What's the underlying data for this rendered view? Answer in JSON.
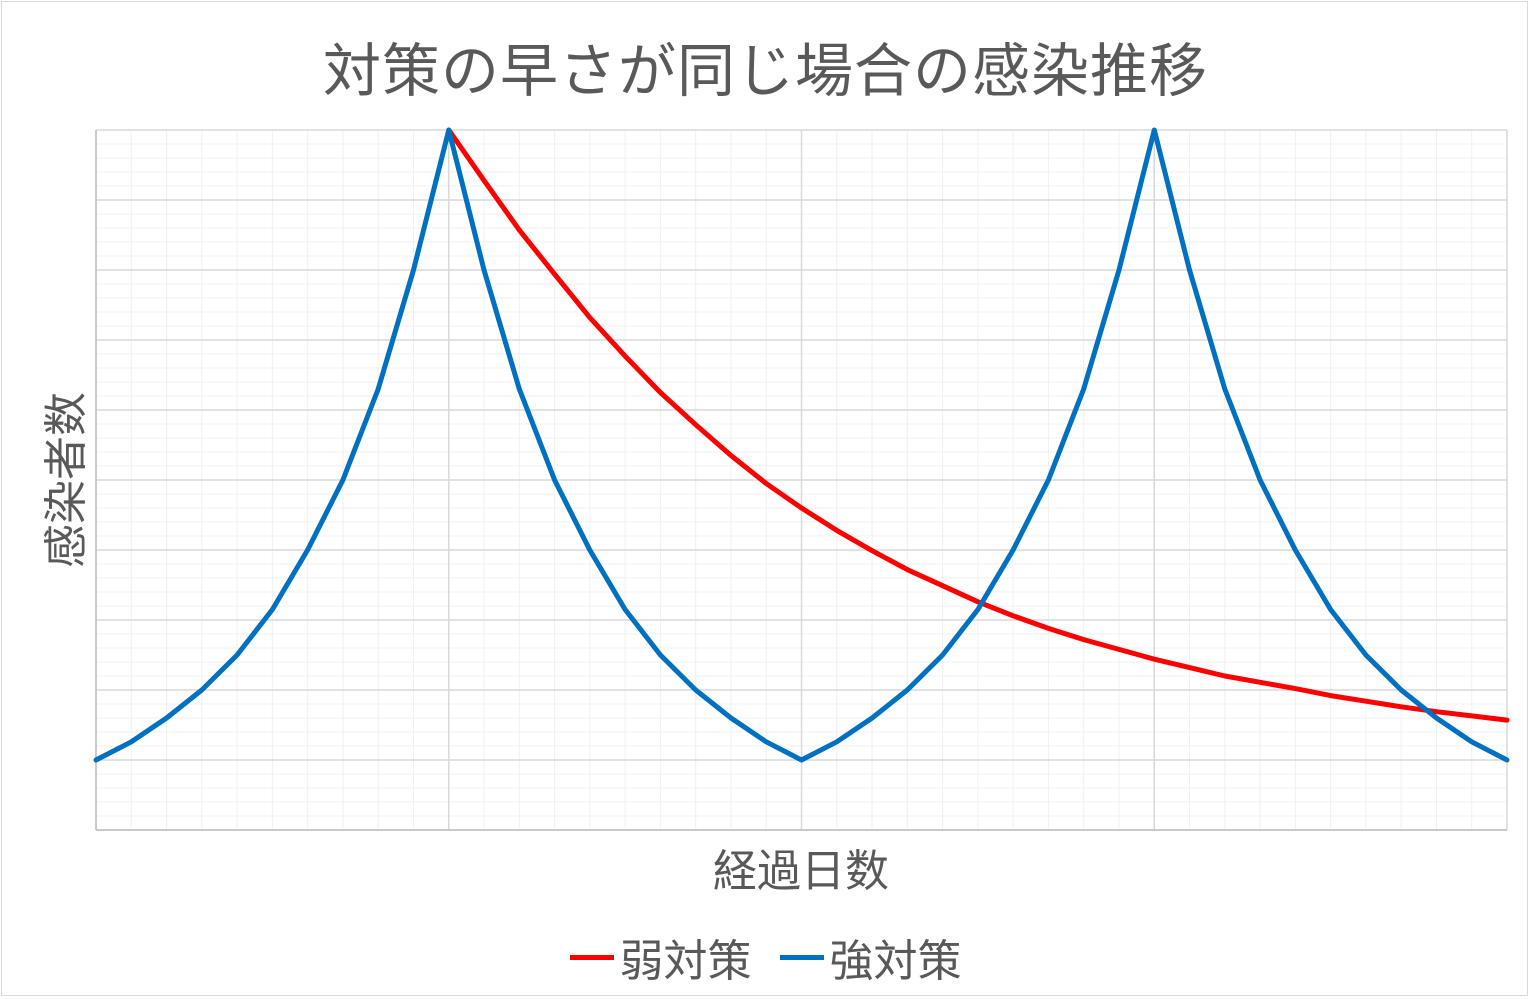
{
  "chart_data": {
    "type": "line",
    "title": "対策の早さが同じ場合の感染推移",
    "xlabel": "経過日数",
    "ylabel": "感染者数",
    "grid": true,
    "legend_position": "bottom",
    "x": [
      0,
      1,
      2,
      3,
      4,
      5,
      6,
      7,
      8,
      9,
      10,
      11,
      12,
      13,
      14,
      15,
      16,
      17,
      18,
      19,
      20,
      21,
      22,
      23,
      24,
      25,
      26,
      27,
      28,
      29,
      30,
      31,
      32,
      33,
      34,
      35,
      36,
      37,
      38,
      39,
      40
    ],
    "xlim": [
      0,
      40
    ],
    "ylim": [
      -1,
      9
    ],
    "series": [
      {
        "name": "弱対策",
        "color": "#ff0000",
        "x": [
          10,
          11,
          12,
          13,
          14,
          15,
          16,
          17,
          18,
          19,
          20,
          21,
          22,
          23,
          24,
          25,
          26,
          27,
          28,
          29,
          30,
          31,
          32,
          33,
          34,
          35,
          36,
          37,
          38,
          39,
          40
        ],
        "values": [
          9.0,
          8.28,
          7.57,
          6.94,
          6.32,
          5.77,
          5.25,
          4.79,
          4.35,
          3.95,
          3.6,
          3.28,
          2.99,
          2.72,
          2.49,
          2.26,
          2.06,
          1.88,
          1.72,
          1.58,
          1.44,
          1.32,
          1.2,
          1.11,
          1.02,
          0.92,
          0.84,
          0.76,
          0.69,
          0.63,
          0.57
        ]
      },
      {
        "name": "強対策",
        "color": "#0070c0",
        "x": [
          0,
          1,
          2,
          3,
          4,
          5,
          6,
          7,
          8,
          9,
          10,
          11,
          12,
          13,
          14,
          15,
          16,
          17,
          18,
          19,
          20,
          21,
          22,
          23,
          24,
          25,
          26,
          27,
          28,
          29,
          30,
          31,
          32,
          33,
          34,
          35,
          36,
          37,
          38,
          39,
          40
        ],
        "values": [
          0.0,
          0.26,
          0.6,
          1.0,
          1.5,
          2.15,
          3.0,
          4.0,
          5.3,
          7.0,
          9.0,
          7.0,
          5.3,
          4.0,
          3.0,
          2.15,
          1.5,
          1.0,
          0.6,
          0.26,
          0.0,
          0.26,
          0.6,
          1.0,
          1.5,
          2.15,
          3.0,
          4.0,
          5.3,
          7.0,
          9.0,
          7.0,
          5.3,
          4.0,
          3.0,
          2.15,
          1.5,
          1.0,
          0.6,
          0.26,
          0.0
        ]
      }
    ]
  }
}
